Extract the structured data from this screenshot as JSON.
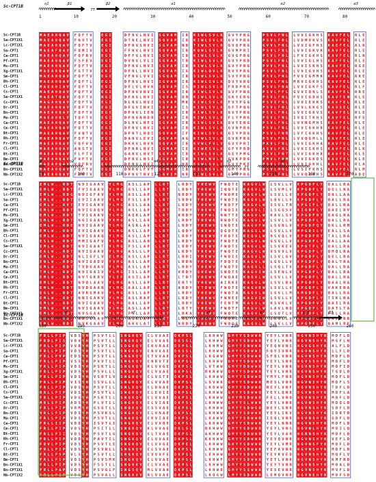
{
  "colors": {
    "identical_bg": "#e8141c",
    "identical_fg": "#ffffff",
    "similar_fg": "#e8141c",
    "similar_box": "#3b5cc4",
    "plain_fg": "#222222",
    "highlight_box": "#6cc24a",
    "spiral": "#222222"
  },
  "alignment": {
    "reference": "Sc-CPT1B",
    "sequences": [
      "Sc-CPT1B",
      "Sa-CPT1X1",
      "Lc-CPT1X1",
      "Sa-CPT1",
      "Ca-CPT1",
      "Pf-CPT1",
      "Ms-CPT1",
      "Xg-CPT1X1",
      "Sm-CPT1",
      "Bh-CPT1",
      "Cl-CPT1",
      "Cs-CPT1",
      "Sa-CPT1X1",
      "Cc-CPT1",
      "Dr-CPT1",
      "Bn-CPT1",
      "Ma-CPT1",
      "Ca-CPT1",
      "Cm-CPT1",
      "Bt-CPT1",
      "Rh-CPT1",
      "Fr-CPT1",
      "Cl-CPT1",
      "Bt-CPT1",
      "Bm-CPT1",
      "Bn-CPT1X1",
      "Bn-CPT1X1",
      "Nb-CPT1X2"
    ],
    "blocks": [
      {
        "positions": [
          {
            "n": "1",
            "col": 0
          },
          {
            "n": "10",
            "col": 9
          },
          {
            "n": "20",
            "col": 19
          },
          {
            "n": "30",
            "col": 29
          },
          {
            "n": "40",
            "col": 39
          },
          {
            "n": "50",
            "col": 49
          },
          {
            "n": "60",
            "col": 59
          },
          {
            "n": "70",
            "col": 69
          },
          {
            "n": "80",
            "col": 79
          }
        ],
        "structure": [
          {
            "kind": "helix",
            "label": "η1",
            "start": 0,
            "end": 3
          },
          {
            "kind": "arrow",
            "label": "β1",
            "start": 4,
            "end": 11
          },
          {
            "kind": "turn",
            "label": "TT",
            "start": 13,
            "end": 14
          },
          {
            "kind": "arrow",
            "label": "β2",
            "start": 15,
            "end": 20
          },
          {
            "kind": "helix",
            "label": "α1",
            "start": 22,
            "end": 47
          },
          {
            "kind": "helix",
            "label": "α2",
            "start": 52,
            "end": 74
          },
          {
            "kind": "helix",
            "label": "α3",
            "start": 78,
            "end": 86
          }
        ],
        "segments": [
          {
            "start": 0,
            "text": "MAEAHQAV"
          },
          {
            "start": 9,
            "text": "FQFTV"
          },
          {
            "start": 16,
            "text": "EGI"
          },
          {
            "start": 22,
            "text": "DFNVLHVI"
          },
          {
            "start": 31,
            "text": "SGVAM"
          },
          {
            "start": 37,
            "text": "IR"
          },
          {
            "start": 40,
            "text": "KIWLSVLK"
          },
          {
            "start": 49,
            "text": "GVYPRG"
          },
          {
            "start": 58,
            "text": "PSVLFNL"
          },
          {
            "start": 66,
            "text": "LVVIGKHS"
          },
          {
            "start": 75,
            "text": "KAVFEL"
          },
          {
            "start": 82,
            "text": "RLE"
          }
        ]
      },
      {
        "positions": [
          {
            "n": "90",
            "col": 0
          },
          {
            "n": "100",
            "col": 10
          },
          {
            "n": "110",
            "col": 20
          },
          {
            "n": "120",
            "col": 30
          },
          {
            "n": "130",
            "col": 40
          },
          {
            "n": "140",
            "col": 50
          },
          {
            "n": "150",
            "col": 60
          },
          {
            "n": "160",
            "col": 70
          },
          {
            "n": "170",
            "col": 80
          }
        ],
        "structure": [
          {
            "kind": "helix",
            "label": "β",
            "start": 0,
            "end": 0
          },
          {
            "kind": "helix",
            "label": "η2",
            "start": 6,
            "end": 10
          },
          {
            "kind": "helix",
            "label": "α4",
            "start": 17,
            "end": 43
          },
          {
            "kind": "helix",
            "label": "η3",
            "start": 47,
            "end": 51
          },
          {
            "kind": "turn",
            "label": "TT",
            "start": 53,
            "end": 54
          },
          {
            "kind": "helix",
            "label": "α5",
            "start": 57,
            "end": 69
          }
        ],
        "segments": [
          {
            "start": 0,
            "text": "EMLW..RDT"
          },
          {
            "start": 10,
            "text": "NVIGAAV"
          },
          {
            "start": 18,
            "text": "YLMG"
          },
          {
            "start": 23,
            "text": "ASLLAP"
          },
          {
            "start": 30,
            "text": "LLRT"
          },
          {
            "start": 36,
            "text": "LRDY"
          },
          {
            "start": 41,
            "text": "YHEWV"
          },
          {
            "start": 47,
            "text": "FWQTE"
          },
          {
            "start": 53,
            "text": "KAGVLW"
          },
          {
            "start": 60,
            "text": "LSVLLV"
          },
          {
            "start": 67,
            "text": "KPGDFLY"
          },
          {
            "start": 75,
            "text": "QALLRA"
          }
        ]
      },
      {
        "positions": [
          {
            "n": "180",
            "col": 0
          },
          {
            "n": "190",
            "col": 10
          },
          {
            "n": "200",
            "col": 20
          },
          {
            "n": "210",
            "col": 30
          },
          {
            "n": "220",
            "col": 40
          },
          {
            "n": "230",
            "col": 50
          },
          {
            "n": "240",
            "col": 60
          },
          {
            "n": "250",
            "col": 70
          },
          {
            "n": "260",
            "col": 80
          }
        ],
        "structure": [
          {
            "kind": "helix",
            "label": "α6",
            "start": 0,
            "end": 13
          },
          {
            "kind": "helix",
            "label": "α7",
            "start": 17,
            "end": 31
          },
          {
            "kind": "helix",
            "label": "α8",
            "start": 37,
            "end": 50
          },
          {
            "kind": "helix",
            "label": "α9",
            "start": 52,
            "end": 63
          },
          {
            "kind": "helix",
            "label": "α10",
            "start": 66,
            "end": 72
          },
          {
            "kind": "arrow",
            "label": "β3",
            "start": 73,
            "end": 78
          }
        ],
        "segments": [
          {
            "start": 0,
            "text": "FRLLPIP"
          },
          {
            "start": 8,
            "text": "VDS"
          },
          {
            "start": 11,
            "text": "YH"
          },
          {
            "start": 14,
            "text": "PSVTLL"
          },
          {
            "start": 21,
            "text": "SNGKQV"
          },
          {
            "start": 28,
            "text": "CLVVAE"
          },
          {
            "start": 35,
            "text": "DKPSL"
          },
          {
            "start": 43,
            "text": "LKHWW"
          },
          {
            "start": 49,
            "text": "GMYYSDWWR"
          },
          {
            "start": 59,
            "text": "YEYLVNR"
          },
          {
            "start": 67,
            "text": "NGVNSHYK"
          },
          {
            "start": 76,
            "text": "MDFLD"
          }
        ]
      }
    ]
  }
}
